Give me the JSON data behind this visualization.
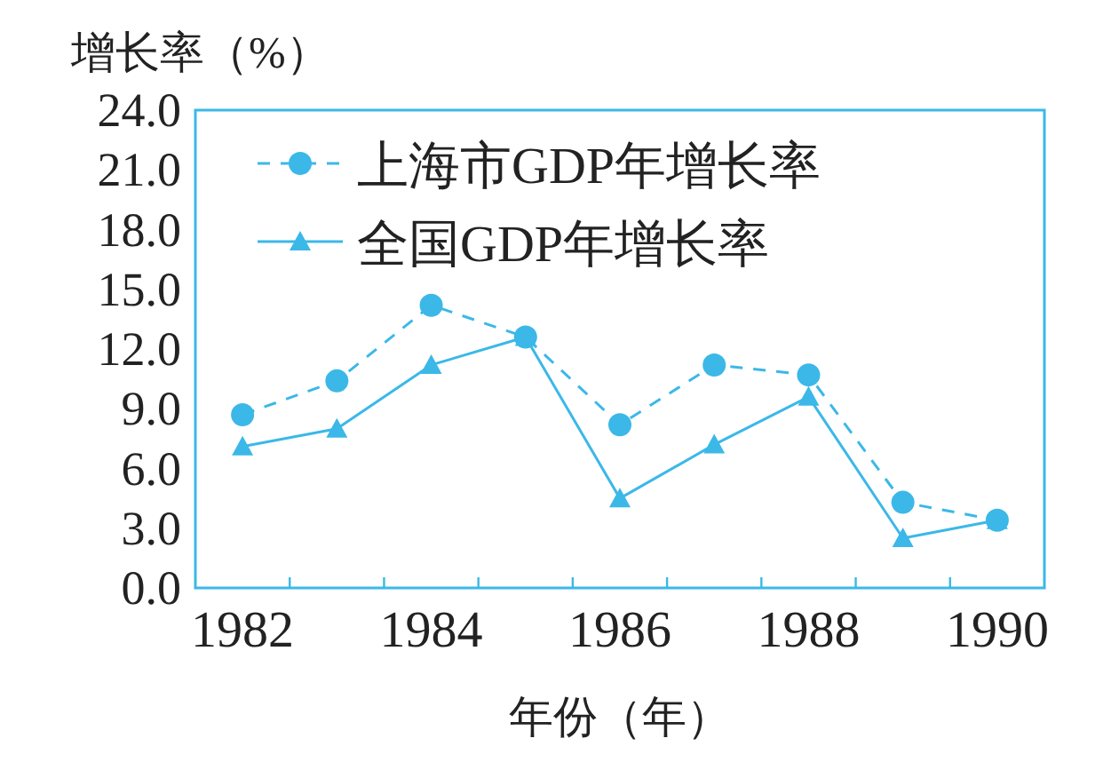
{
  "chart_data": {
    "type": "line",
    "ylabel": "增长率（%）",
    "xlabel": "年份（年）",
    "categories": [
      "1982",
      null,
      "1984",
      null,
      "1986",
      null,
      "1988",
      null,
      "1990"
    ],
    "series": [
      {
        "name": "上海市GDP年增长率",
        "color": "#3bb8e8",
        "marker": "circle",
        "line_style": "dashed",
        "values": [
          8.7,
          10.4,
          14.2,
          12.6,
          8.2,
          11.2,
          10.7,
          4.3,
          3.4
        ]
      },
      {
        "name": "全国GDP年增长率",
        "color": "#3bb8e8",
        "marker": "triangle",
        "line_style": "solid",
        "values": [
          7.1,
          8.0,
          11.2,
          12.6,
          4.5,
          7.2,
          9.6,
          2.5,
          3.4
        ]
      }
    ],
    "ylim": [
      0,
      24
    ],
    "yticks": [
      {
        "value": 0,
        "label": "0.0"
      },
      {
        "value": 3,
        "label": "3.0"
      },
      {
        "value": 6,
        "label": "6.0"
      },
      {
        "value": 9,
        "label": "9.0"
      },
      {
        "value": 12,
        "label": "12.0"
      },
      {
        "value": 15,
        "label": "15.0"
      },
      {
        "value": 18,
        "label": "18.0"
      },
      {
        "value": 21,
        "label": "21.0"
      },
      {
        "value": 24,
        "label": "24.0"
      }
    ],
    "grid": false,
    "legend": "top left"
  }
}
